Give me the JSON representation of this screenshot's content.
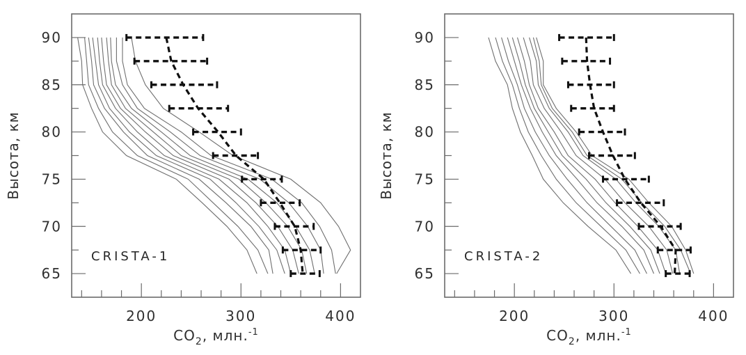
{
  "figure": {
    "background": "#ffffff",
    "axis_color": "#6a6a6a",
    "profile_line_color": "#6e6e6e",
    "mean_line_color": "#101010",
    "text_color": "#2f2f2f"
  },
  "chart_data": {
    "type": "line",
    "title": "",
    "xlabel": "CO2, млн.-1",
    "xlabel_parts": {
      "pre": "CO",
      "sub": "2",
      "mid": ", млн.",
      "sup": "-1"
    },
    "ylabel": "Высота, км",
    "xlim": [
      130,
      420
    ],
    "ylim": [
      62.5,
      92.5
    ],
    "grid": false,
    "legend": "none",
    "x_major_ticks": [
      200,
      300,
      400
    ],
    "x_minor_ticks": [
      140,
      160,
      180,
      220,
      240,
      260,
      280,
      320,
      340,
      360,
      380
    ],
    "y_major_ticks": [
      65,
      70,
      75,
      80,
      85,
      90
    ],
    "y_minor_ticks": [
      67.5,
      72.5,
      77.5,
      82.5,
      87.5
    ],
    "profile_altitudes_km": [
      90,
      87.5,
      85,
      82.5,
      80,
      77.5,
      75,
      72.5,
      70,
      67.5,
      65
    ],
    "error_bar_altitudes_km": [
      90,
      87.5,
      85,
      82.5,
      80,
      77.5,
      75,
      72.5,
      70,
      67.5,
      65
    ],
    "panels": [
      {
        "label": "CRISTA-1",
        "mean_profile": {
          "co2_ppm": [
            225,
            230,
            242,
            257,
            277,
            295,
            323,
            339,
            354,
            360,
            362
          ],
          "err_lo": [
            185,
            193,
            210,
            228,
            252,
            272,
            301,
            320,
            334,
            342,
            350
          ],
          "err_hi": [
            262,
            266,
            276,
            287,
            300,
            317,
            341,
            359,
            373,
            380,
            379
          ]
        },
        "individual_profiles": [
          [
            136,
            140,
            141,
            150,
            161,
            185,
            235,
            261,
            286,
            306,
            316
          ],
          [
            143,
            145,
            147,
            157,
            171,
            196,
            247,
            272,
            297,
            317,
            327
          ],
          [
            147,
            150,
            152,
            163,
            182,
            206,
            258,
            285,
            310,
            328,
            332
          ],
          [
            151,
            154,
            157,
            168,
            188,
            215,
            269,
            295,
            318,
            336,
            344
          ],
          [
            156,
            158,
            161,
            174,
            196,
            223,
            278,
            306,
            327,
            344,
            350
          ],
          [
            160,
            162,
            165,
            179,
            204,
            232,
            288,
            315,
            337,
            352,
            358
          ],
          [
            165,
            167,
            170,
            184,
            212,
            240,
            298,
            325,
            347,
            361,
            366
          ],
          [
            169,
            170,
            174,
            190,
            220,
            249,
            307,
            336,
            355,
            369,
            374
          ],
          [
            175,
            175,
            181,
            196,
            229,
            259,
            319,
            348,
            367,
            380,
            383
          ],
          [
            181,
            181,
            186,
            203,
            240,
            270,
            331,
            361,
            379,
            391,
            395
          ],
          [
            190,
            194,
            204,
            222,
            258,
            292,
            350,
            380,
            398,
            410,
            396
          ]
        ]
      },
      {
        "label": "CRISTA-2",
        "mean_profile": {
          "co2_ppm": [
            272,
            273,
            276,
            280,
            289,
            299,
            311,
            327,
            347,
            362,
            361
          ],
          "err_lo": [
            245,
            248,
            254,
            257,
            265,
            275,
            289,
            303,
            325,
            344,
            352
          ],
          "err_hi": [
            300,
            296,
            300,
            300,
            311,
            321,
            335,
            350,
            367,
            377,
            376
          ]
        },
        "individual_profiles": [
          [
            174,
            181,
            193,
            198,
            206,
            218,
            229,
            249,
            274,
            302,
            317
          ],
          [
            181,
            188,
            198,
            205,
            214,
            227,
            242,
            262,
            287,
            312,
            326
          ],
          [
            187,
            194,
            203,
            210,
            221,
            235,
            253,
            273,
            297,
            321,
            333
          ],
          [
            193,
            200,
            207,
            216,
            228,
            242,
            263,
            283,
            308,
            330,
            340
          ],
          [
            198,
            205,
            211,
            220,
            234,
            248,
            272,
            292,
            316,
            337,
            346
          ],
          [
            203,
            210,
            215,
            224,
            240,
            254,
            281,
            301,
            324,
            344,
            352
          ],
          [
            209,
            216,
            219,
            230,
            247,
            262,
            291,
            311,
            335,
            353,
            359
          ],
          [
            215,
            222,
            224,
            235,
            254,
            269,
            302,
            322,
            345,
            362,
            366
          ],
          [
            222,
            229,
            229,
            242,
            262,
            278,
            315,
            335,
            358,
            372,
            380
          ],
          [
            219,
            225,
            227,
            238,
            258,
            273,
            308,
            328,
            351,
            367,
            377
          ]
        ]
      }
    ]
  }
}
